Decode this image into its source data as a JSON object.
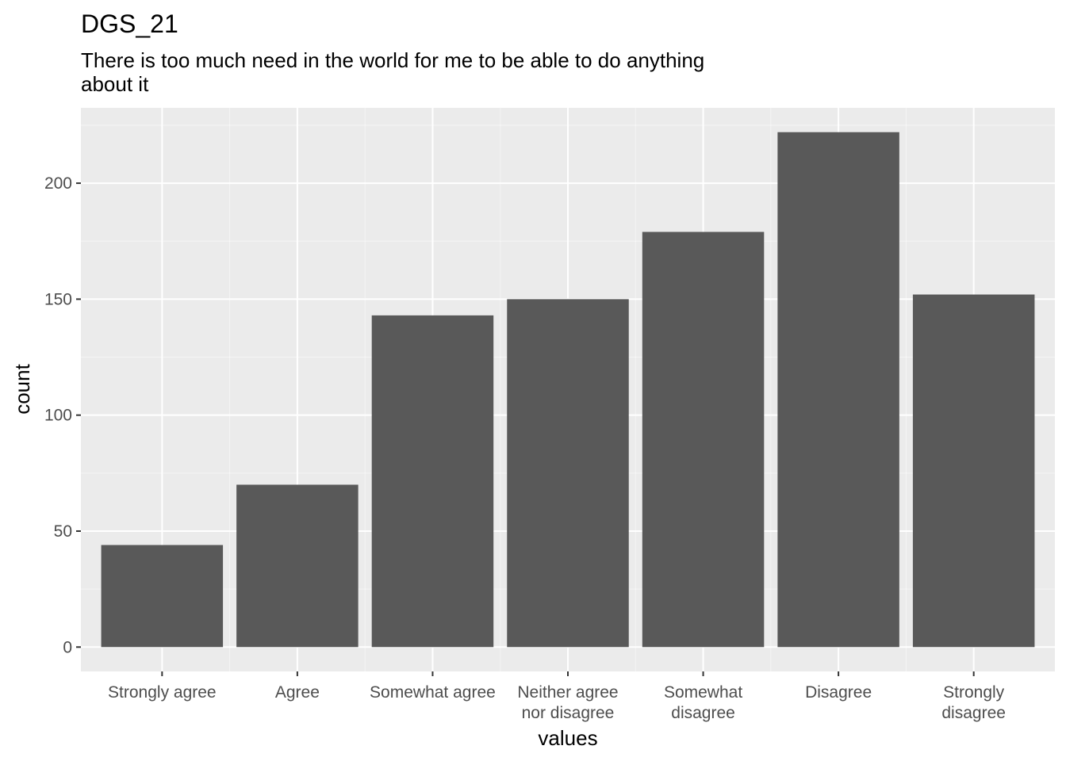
{
  "chart_data": {
    "type": "bar",
    "title": "DGS_21",
    "subtitle": [
      "There is too much need in the world for me to be able to do anything",
      "about it"
    ],
    "xlabel": "values",
    "ylabel": "count",
    "categories": [
      [
        "Strongly agree"
      ],
      [
        "Agree"
      ],
      [
        "Somewhat agree"
      ],
      [
        "Neither agree",
        "nor disagree"
      ],
      [
        "Somewhat",
        "disagree"
      ],
      [
        "Disagree"
      ],
      [
        "Strongly",
        "disagree"
      ]
    ],
    "values": [
      44,
      70,
      143,
      150,
      179,
      222,
      152
    ],
    "ylim": [
      -10.5,
      232.5
    ],
    "yticks": [
      0,
      50,
      100,
      150,
      200
    ],
    "grid": true,
    "colors": {
      "bar": "#595959",
      "panel": "#ebebeb",
      "grid_major": "#ffffff",
      "tick_text": "#4d4d4d",
      "tick_mark": "#333333"
    }
  }
}
